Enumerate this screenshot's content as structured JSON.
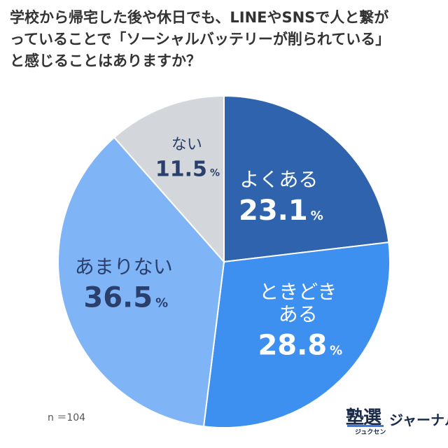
{
  "header": {
    "title_lines": [
      "学校から帰宅した後や休日でも、LINEやSNSで人と繋が",
      "っていることで「ソーシャルバッテリーが削られている」",
      "と感じることはありますか？"
    ]
  },
  "chart_data": {
    "type": "pie",
    "unit": "%",
    "slices": [
      {
        "label": "よくある",
        "value": 23.1,
        "color": "#2f63ad"
      },
      {
        "label": "ときどきある",
        "label_lines": [
          "ときどき",
          "ある"
        ],
        "value": 28.8,
        "color": "#3d8ff0"
      },
      {
        "label": "あまりない",
        "value": 36.5,
        "color": "#7fb4f7"
      },
      {
        "label": "ない",
        "value": 11.5,
        "color": "#d3d6da"
      }
    ]
  },
  "footer": {
    "sample_size": "n ＝104",
    "logo_kanji": "塾選",
    "logo_ruby": "ジュクセン",
    "logo_text": "ジャーナル"
  }
}
